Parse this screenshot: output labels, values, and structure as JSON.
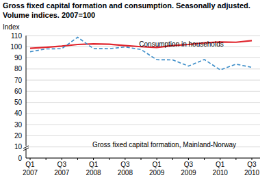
{
  "chart_data": {
    "type": "line",
    "title": "Gross fixed capital formation and consumption. Seasonally adjusted.",
    "subtitle": "Volume indices. 2007=100",
    "y_label": "Index",
    "categories": [
      "Q1 2007",
      null,
      "Q3 2007",
      null,
      "Q1 2008",
      null,
      "Q3 2008",
      null,
      "Q1 2009",
      null,
      "Q3 2009",
      null,
      "Q1 2010",
      null,
      "Q3 2010"
    ],
    "series": [
      {
        "name": "Consumption in households",
        "color": "#e0262e",
        "line_style": "solid",
        "values": [
          98.5,
          99.5,
          100.5,
          102,
          102.5,
          102.3,
          101,
          100,
          99.3,
          101,
          102,
          103.5,
          104.2,
          104,
          105.5
        ]
      },
      {
        "name": "Gross fixed capital formation, Mainland-Norway",
        "color": "#3a8cc8",
        "line_style": "dashed",
        "values": [
          95.5,
          98,
          98.2,
          108.5,
          98.3,
          98.2,
          99.8,
          97.5,
          88.3,
          88.2,
          82.6,
          88.5,
          79.2,
          84.3,
          81.5
        ]
      }
    ],
    "ylim": [
      0,
      110
    ],
    "yticks": [
      0,
      10,
      20,
      30,
      40,
      50,
      60,
      70,
      80,
      90,
      100,
      110
    ],
    "grid": true
  }
}
